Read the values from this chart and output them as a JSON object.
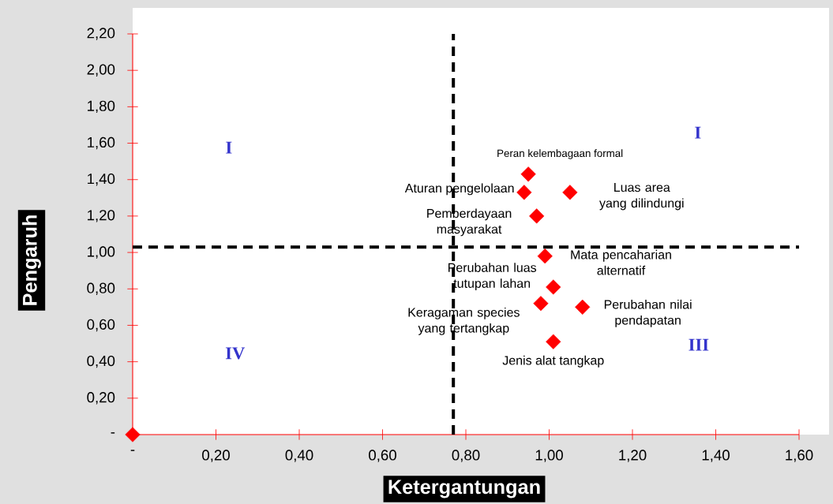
{
  "chart_data": {
    "type": "scatter",
    "xlabel": "Ketergantungan",
    "ylabel": "Pengaruh",
    "x": [
      0,
      0.95,
      0.94,
      1.05,
      0.97,
      0.99,
      1.01,
      0.98,
      1.08,
      1.01
    ],
    "values": [
      0,
      1.43,
      1.33,
      1.33,
      1.2,
      0.98,
      0.81,
      0.72,
      0.7,
      0.51
    ],
    "value_labels": [
      null,
      "Peran kelembagaan formal",
      "Aturan pengelolaan",
      "Luas area yang dilindungi",
      "Pemberdayaan masyarakat",
      "Mata pencaharian alternatif",
      "Perubahan luas tutupan lahan",
      "Keragaman species yang tertangkap",
      "Perubahan nilai pendapatan",
      "Jenis alat tangkap"
    ],
    "color": "#ff0000",
    "marker": "diamond",
    "grid": false,
    "xlim": [
      0,
      1.6
    ],
    "xticks": [
      {
        "value": 0,
        "label": "-"
      },
      {
        "value": 0.2,
        "label": "0,20"
      },
      {
        "value": 0.4,
        "label": "0,40"
      },
      {
        "value": 0.6,
        "label": "0,60"
      },
      {
        "value": 0.8,
        "label": "0,80"
      },
      {
        "value": 1.0,
        "label": "1,00"
      },
      {
        "value": 1.2,
        "label": "1,20"
      },
      {
        "value": 1.4,
        "label": "1,40"
      },
      {
        "value": 1.6,
        "label": "1,60"
      }
    ],
    "ylim": [
      0,
      2.2
    ],
    "yticks": [
      {
        "value": 0,
        "label": "-"
      },
      {
        "value": 0.2,
        "label": "0,20"
      },
      {
        "value": 0.4,
        "label": "0,40"
      },
      {
        "value": 0.6,
        "label": "0,60"
      },
      {
        "value": 0.8,
        "label": "0,80"
      },
      {
        "value": 1.0,
        "label": "1,00"
      },
      {
        "value": 1.2,
        "label": "1,20"
      },
      {
        "value": 1.4,
        "label": "1,40"
      },
      {
        "value": 1.6,
        "label": "1,60"
      },
      {
        "value": 1.8,
        "label": "1,80"
      },
      {
        "value": 2.0,
        "label": "2,00"
      },
      {
        "value": 2.2,
        "label": "2,20"
      }
    ],
    "ref_lines": [
      {
        "axis": "x",
        "value": 0.77,
        "color": "#000000",
        "line_style": "dashed"
      },
      {
        "axis": "y",
        "value": 1.03,
        "color": "#000000",
        "line_style": "dashed"
      }
    ],
    "annotations": [
      "I",
      "I",
      "IV",
      "III"
    ]
  }
}
